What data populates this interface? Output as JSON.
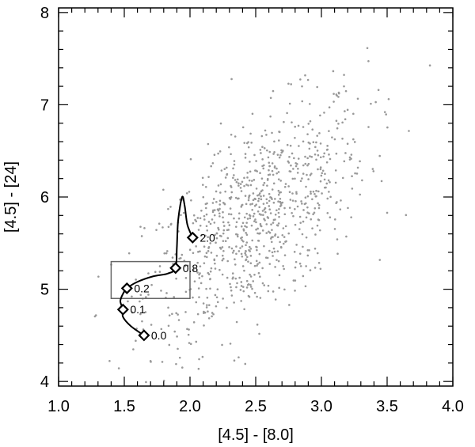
{
  "chart_data": {
    "type": "scatter",
    "xlabel": "[4.5] - [8.0]",
    "ylabel": "[4.5] - [24]",
    "xlim": [
      1.0,
      4.0
    ],
    "ylim": [
      3.95,
      8.05
    ],
    "x_ticks": [
      "1.0",
      "1.5",
      "2.0",
      "2.5",
      "3.0",
      "3.5",
      "4.0"
    ],
    "y_ticks": [
      "4",
      "5",
      "6",
      "7",
      "8"
    ],
    "grid": false,
    "colors": {
      "points": "#999999",
      "track": "#000000",
      "box": "#666666"
    },
    "scatter_cloud": {
      "description_of_distribution": "dense cloud of grey points",
      "n_points": 900,
      "center": [
        2.5,
        5.8
      ],
      "x_range": [
        1.2,
        3.95
      ],
      "y_range": [
        3.95,
        7.9
      ]
    },
    "selection_box": {
      "x": [
        1.4,
        2.0
      ],
      "y": [
        4.9,
        5.3
      ]
    },
    "redshift_track": {
      "points": [
        {
          "x": 1.65,
          "y": 4.5
        },
        {
          "x": 1.55,
          "y": 4.6
        },
        {
          "x": 1.49,
          "y": 4.7
        },
        {
          "x": 1.49,
          "y": 4.78
        },
        {
          "x": 1.47,
          "y": 4.87
        },
        {
          "x": 1.49,
          "y": 4.95
        },
        {
          "x": 1.52,
          "y": 5.01
        },
        {
          "x": 1.6,
          "y": 5.08
        },
        {
          "x": 1.72,
          "y": 5.14
        },
        {
          "x": 1.83,
          "y": 5.17
        },
        {
          "x": 1.89,
          "y": 5.23
        },
        {
          "x": 1.9,
          "y": 5.45
        },
        {
          "x": 1.91,
          "y": 5.75
        },
        {
          "x": 1.94,
          "y": 6.0
        },
        {
          "x": 1.96,
          "y": 5.9
        },
        {
          "x": 1.98,
          "y": 5.7
        },
        {
          "x": 2.02,
          "y": 5.56
        }
      ],
      "markers": [
        {
          "x": 1.65,
          "y": 4.5,
          "label": "0.0"
        },
        {
          "x": 1.49,
          "y": 4.78,
          "label": "0.1"
        },
        {
          "x": 1.52,
          "y": 5.01,
          "label": "0.2"
        },
        {
          "x": 1.89,
          "y": 5.23,
          "label": "0.8"
        },
        {
          "x": 2.02,
          "y": 5.56,
          "label": "2.0"
        }
      ]
    }
  }
}
